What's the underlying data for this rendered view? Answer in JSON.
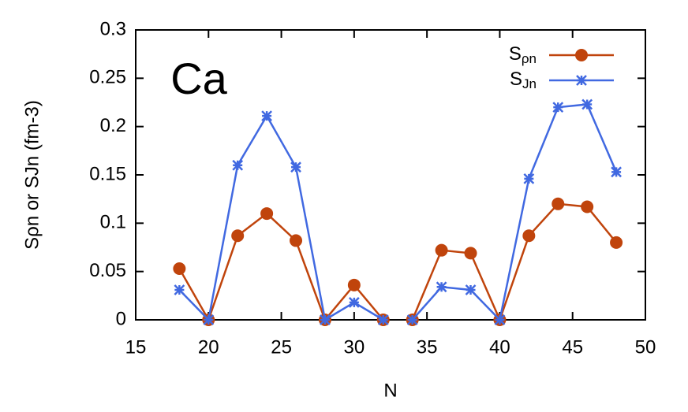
{
  "chart_data": {
    "type": "line",
    "annotation": "Ca",
    "x_label": "N",
    "y_label": "Sρn or SJn (fm-3)",
    "x": [
      18,
      20,
      22,
      24,
      26,
      28,
      30,
      32,
      33,
      34,
      36,
      38,
      40,
      42,
      44,
      46,
      48
    ],
    "series": [
      {
        "name": "Sρn",
        "color": "#c0440c",
        "marker": "circle",
        "values": [
          0.053,
          0,
          0.087,
          0.11,
          0.082,
          0,
          0.036,
          0,
          null,
          0,
          0.072,
          0.069,
          0,
          0.087,
          0.12,
          0.117,
          0.08
        ]
      },
      {
        "name": "SJn",
        "color": "#4169e1",
        "marker": "star",
        "values": [
          0.031,
          0,
          0.16,
          0.211,
          0.158,
          0,
          0.018,
          0,
          null,
          0,
          0.034,
          0.031,
          0,
          0.146,
          0.22,
          0.223,
          0.153
        ]
      }
    ],
    "xlim": [
      15,
      50
    ],
    "xticks": [
      15,
      20,
      25,
      30,
      35,
      40,
      45,
      50
    ],
    "ylim": [
      0,
      0.3
    ],
    "yticks": [
      0,
      0.05,
      0.1,
      0.15,
      0.2,
      0.25,
      0.3
    ],
    "legend": "top-right"
  }
}
